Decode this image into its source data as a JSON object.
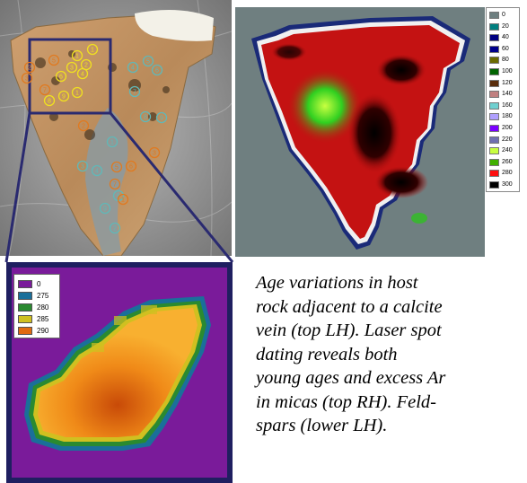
{
  "photo": {
    "circle_labels": [
      "1",
      "1",
      "2",
      "3",
      "4",
      "5",
      "6",
      "7",
      "8",
      "9",
      "1",
      "2",
      "3",
      "4",
      "5",
      "6",
      "7",
      "8",
      "9",
      "1",
      "2",
      "3",
      "4",
      "5",
      "6",
      "7",
      "8",
      "9",
      "1",
      "2",
      "3"
    ]
  },
  "legend_rh": {
    "entries": [
      {
        "label": "0",
        "color": "#6e7f80"
      },
      {
        "label": "20",
        "color": "#008080"
      },
      {
        "label": "40",
        "color": "#000080"
      },
      {
        "label": "60",
        "color": "#00008b"
      },
      {
        "label": "80",
        "color": "#6b6b00"
      },
      {
        "label": "100",
        "color": "#006400"
      },
      {
        "label": "120",
        "color": "#5a2d0c"
      },
      {
        "label": "140",
        "color": "#c08080"
      },
      {
        "label": "160",
        "color": "#6fd0d0"
      },
      {
        "label": "180",
        "color": "#b0a0ff"
      },
      {
        "label": "200",
        "color": "#7a00ff"
      },
      {
        "label": "220",
        "color": "#7070b0"
      },
      {
        "label": "240",
        "color": "#c8ff40"
      },
      {
        "label": "260",
        "color": "#40b000"
      },
      {
        "label": "280",
        "color": "#ff1010"
      },
      {
        "label": "300",
        "color": "#000000"
      }
    ]
  },
  "legend_lh": {
    "entries": [
      {
        "label": "0",
        "color": "#7a1b9a"
      },
      {
        "label": "275",
        "color": "#1a6f9a"
      },
      {
        "label": "280",
        "color": "#2a8a30"
      },
      {
        "label": "285",
        "color": "#d0c020"
      },
      {
        "label": "290",
        "color": "#e06a10"
      }
    ]
  },
  "caption": {
    "line1": "Age variations in host",
    "line2": "rock adjacent to a calcite",
    "line3": "vein (top LH). Laser spot",
    "line4": "dating reveals both",
    "line5": "young ages and excess Ar",
    "line6": "in micas (top RH). Feld-",
    "line7": "spars (lower LH)."
  }
}
